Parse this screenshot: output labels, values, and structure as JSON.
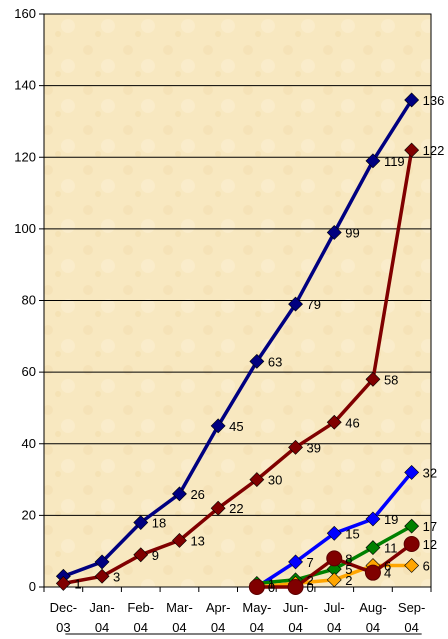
{
  "chart_data": {
    "type": "line",
    "categories": [
      "Dec-03",
      "Jan-04",
      "Feb-04",
      "Mar-04",
      "Apr-04",
      "May-04",
      "Jun-04",
      "Jul-04",
      "Aug-04",
      "Sep-04"
    ],
    "category_lines": [
      [
        "Dec-",
        "03"
      ],
      [
        "Jan-",
        "04"
      ],
      [
        "Feb-",
        "04"
      ],
      [
        "Mar-",
        "04"
      ],
      [
        "Apr-",
        "04"
      ],
      [
        "May-",
        "04"
      ],
      [
        "Jun-",
        "04"
      ],
      [
        "Jul-",
        "04"
      ],
      [
        "Aug-",
        "04"
      ],
      [
        "Sep-",
        "04"
      ]
    ],
    "ylim": [
      0,
      160
    ],
    "yticks": [
      0,
      20,
      40,
      60,
      80,
      100,
      120,
      140,
      160
    ],
    "grid": "horizontal",
    "plot_background": "#f8e8c0",
    "series": [
      {
        "color": "#000080",
        "marker": "diamond",
        "values": [
          3,
          7,
          18,
          26,
          45,
          63,
          79,
          99,
          119,
          136
        ],
        "labels": [
          "",
          "",
          "18",
          "26",
          "45",
          "63",
          "79",
          "99",
          "119",
          "136"
        ]
      },
      {
        "color": "#800000",
        "marker": "diamond",
        "values": [
          1,
          3,
          9,
          13,
          22,
          30,
          39,
          46,
          58,
          122
        ],
        "labels": [
          "1",
          "3",
          "9",
          "13",
          "22",
          "30",
          "39",
          "46",
          "58",
          "122"
        ]
      },
      {
        "color": "#0000ff",
        "marker": "diamond",
        "values": [
          null,
          null,
          null,
          null,
          null,
          0,
          7,
          15,
          19,
          32
        ],
        "labels": [
          "",
          "",
          "",
          "",
          "",
          "",
          "7",
          "15",
          "19",
          "32"
        ]
      },
      {
        "color": "#008000",
        "marker": "diamond",
        "values": [
          null,
          null,
          null,
          null,
          null,
          1,
          2,
          5,
          11,
          17
        ],
        "labels": [
          "",
          "",
          "",
          "",
          "",
          "1",
          "2",
          "5",
          "11",
          "17"
        ]
      },
      {
        "color": "#ffa500",
        "marker": "diamond",
        "values": [
          null,
          null,
          null,
          null,
          null,
          0,
          1,
          2,
          6,
          6
        ],
        "labels": [
          "",
          "",
          "",
          "",
          "",
          "",
          "",
          "2",
          "6",
          "6"
        ]
      },
      {
        "color": "#800000",
        "marker": "circle",
        "values": [
          null,
          null,
          null,
          null,
          null,
          0,
          0,
          8,
          4,
          12
        ],
        "labels": [
          "",
          "",
          "",
          "",
          "",
          "0",
          "0",
          "8",
          "4",
          "12"
        ]
      }
    ]
  }
}
